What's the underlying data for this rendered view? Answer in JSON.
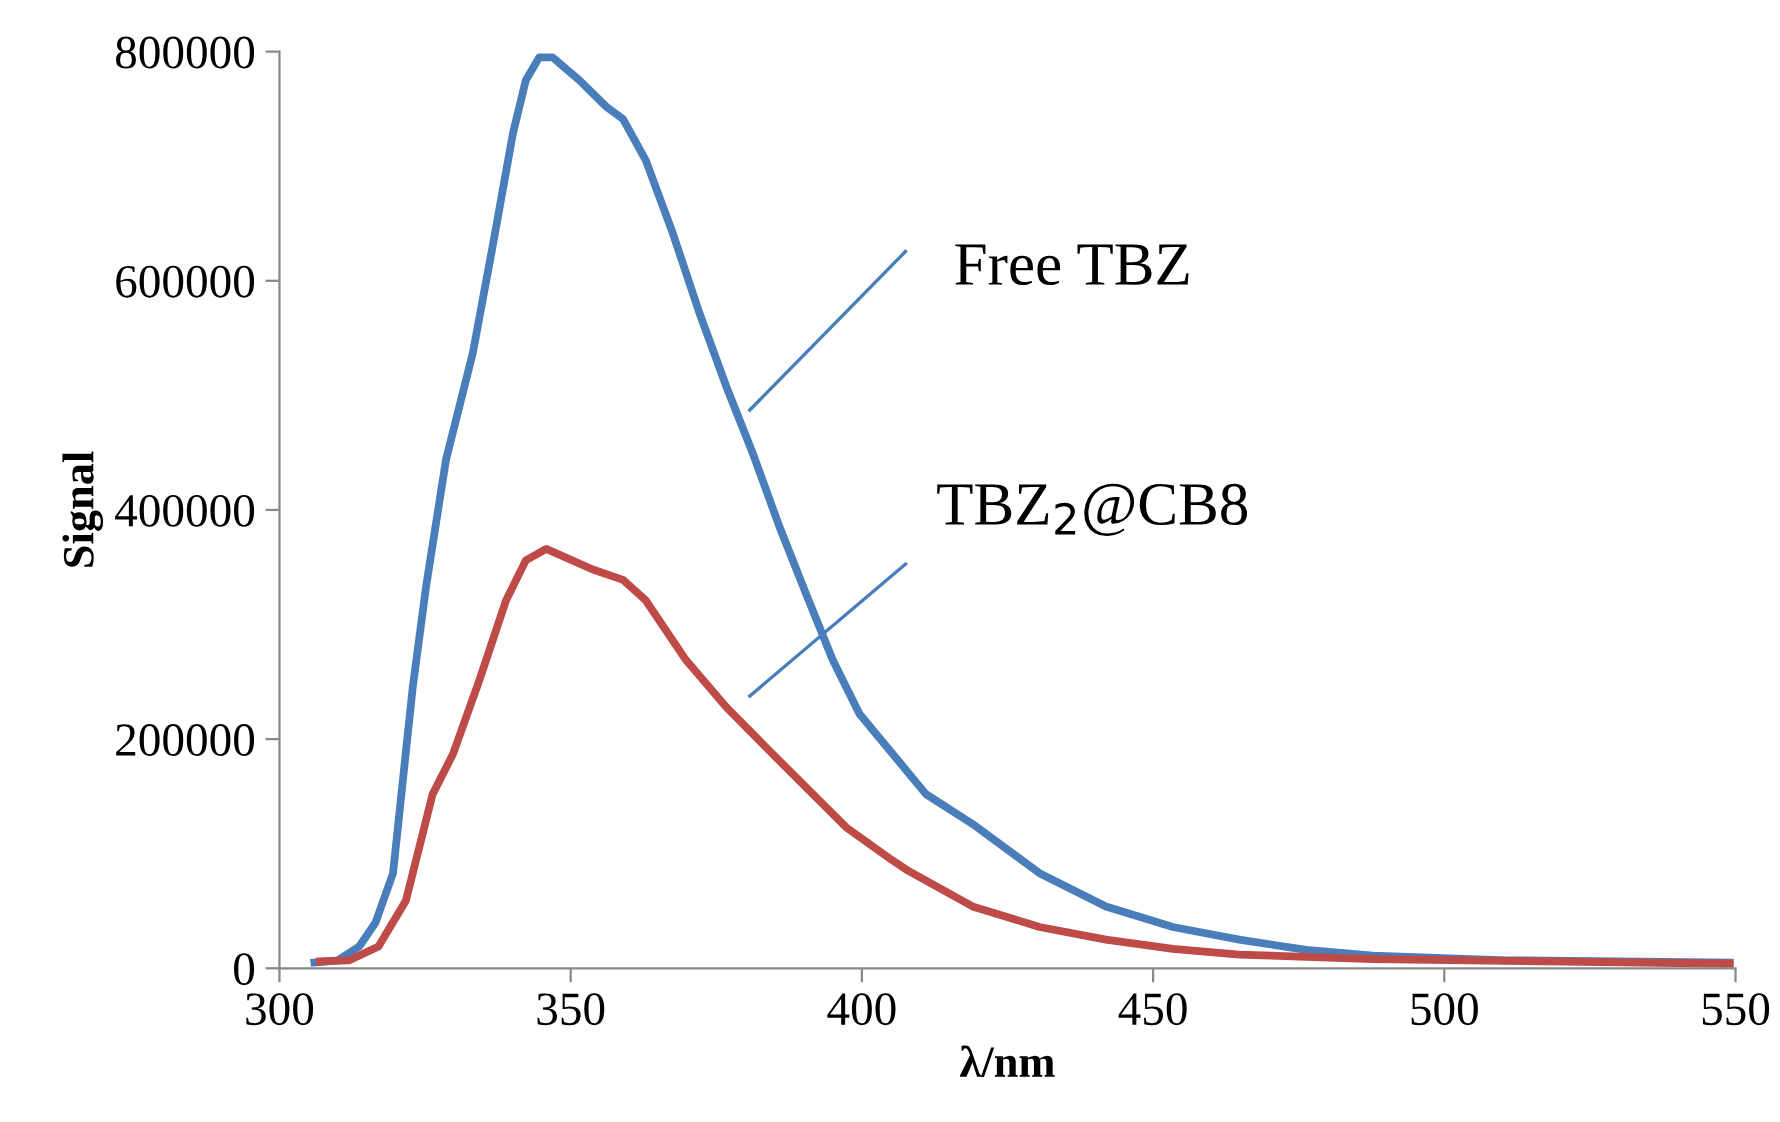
{
  "chart_data": {
    "type": "line",
    "xlabel": "λ/nm",
    "ylabel": "Signal",
    "xlim": [
      300,
      550
    ],
    "xticks": [
      300,
      350,
      400,
      450,
      500,
      550
    ],
    "ylim": [
      0,
      800000
    ],
    "yticks": [
      0,
      200000,
      400000,
      600000,
      800000
    ],
    "grid": false,
    "legend": false,
    "marker": "none",
    "line_style": "solid",
    "annotations": [
      "Free TBZ",
      "TBZ$_{2}$@CB8"
    ],
    "series": [
      {
        "color": "#4a7ebb",
        "x": [
          306,
          310,
          313.7,
          316.5,
          319.5,
          322.9,
          325.2,
          328.6,
          333.2,
          336.6,
          340.1,
          342.3,
          344.6,
          346.9,
          351.5,
          356.1,
          359,
          362.9,
          367.5,
          372.1,
          376.7,
          381.3,
          385.8,
          390.4,
          395,
          399.6,
          405.3,
          411,
          419,
          430.5,
          441.9,
          453.4,
          464.8,
          476.3,
          487.7,
          510.6,
          549
        ],
        "values": [
          5000,
          7000,
          19000,
          40000,
          83000,
          246000,
          334000,
          444000,
          537000,
          630000,
          729000,
          775000,
          795000,
          795000,
          775000,
          752000,
          741000,
          705000,
          642000,
          572000,
          508000,
          449000,
          386000,
          327000,
          269000,
          222000,
          187000,
          152000,
          126000,
          83000,
          54000,
          36000,
          25000,
          16000,
          11000,
          7000,
          5000
        ]
      },
      {
        "color": "#be4b48",
        "x": [
          306.9,
          312,
          317,
          321.7,
          326.3,
          329.8,
          334.3,
          338.9,
          342.3,
          345.8,
          353.8,
          359,
          362.9,
          369.8,
          376.7,
          383.5,
          390.4,
          397.3,
          405.3,
          408,
          419,
          430.5,
          441.9,
          453.4,
          464.8,
          487.7,
          549
        ],
        "values": [
          6000,
          7000,
          19000,
          59000,
          152000,
          187000,
          251000,
          321000,
          356000,
          366000,
          348000,
          339000,
          321000,
          269000,
          228000,
          193000,
          158000,
          123000,
          94000,
          85000,
          54000,
          36000,
          25000,
          17000,
          12000,
          8000,
          4000
        ]
      }
    ]
  }
}
